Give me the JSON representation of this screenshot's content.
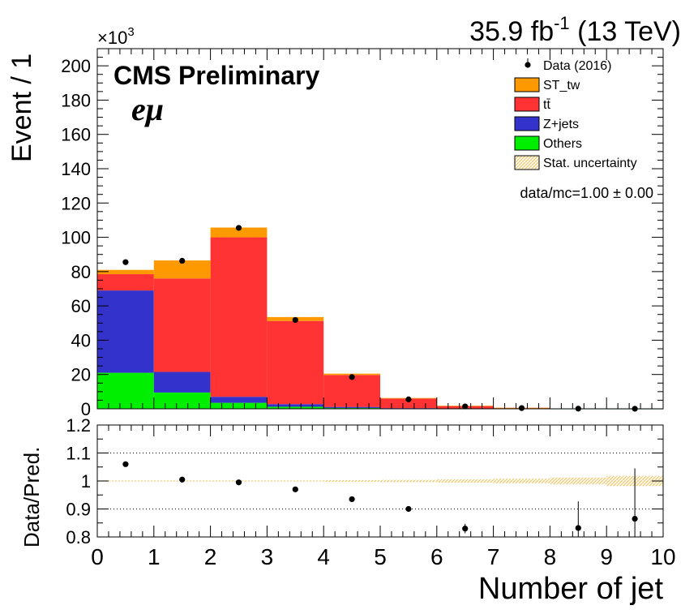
{
  "header": {
    "lumi_value": "35.9 fb",
    "lumi_exp": "-1",
    "energy": " (13 TeV)"
  },
  "labels": {
    "experiment": "CMS Preliminary",
    "channel": "eμ",
    "ratio_text": "data/mc=1.00 ± 0.00",
    "exponent": "×10",
    "exponent_power": "3"
  },
  "chart_data": [
    {
      "type": "bar",
      "stacked": true,
      "xlabel": "Number of jet",
      "ylabel": "Event / 1",
      "xlim": [
        0,
        10
      ],
      "ylim": [
        0,
        210
      ],
      "y_scale_factor": 1000,
      "x_ticks": [
        "0",
        "1",
        "2",
        "3",
        "4",
        "5",
        "6",
        "7",
        "8",
        "9",
        "10"
      ],
      "y_ticks": [
        "0",
        "20",
        "40",
        "60",
        "80",
        "100",
        "120",
        "140",
        "160",
        "180",
        "200"
      ],
      "bin_edges": [
        0,
        1,
        2,
        3,
        4,
        5,
        6,
        7,
        8,
        9,
        10
      ],
      "series": [
        {
          "name": "Others",
          "color": "#00ee00",
          "values": [
            21,
            9.5,
            3.5,
            1.2,
            0.5,
            0.2,
            0.1,
            0.05,
            0.02,
            0.01
          ]
        },
        {
          "name": "Z+jets",
          "color": "#3333cc",
          "values": [
            48,
            12,
            3.5,
            1.5,
            0.6,
            0.2,
            0.1,
            0.05,
            0.02,
            0.01
          ]
        },
        {
          "name": "tt̄",
          "color": "#ff3333",
          "values": [
            9.5,
            54.5,
            93,
            48.5,
            18.6,
            5.6,
            1.5,
            0.45,
            0.15,
            0.05
          ]
        },
        {
          "name": "ST_tw",
          "color": "#ff9900",
          "values": [
            2.5,
            10.5,
            5.7,
            2.3,
            0.8,
            0.3,
            0.05,
            0.02,
            0.01,
            0.0
          ]
        }
      ],
      "data_points": {
        "name": "Data (2016)",
        "x": [
          0.5,
          1.5,
          2.5,
          3.5,
          4.5,
          5.5,
          6.5,
          7.5,
          8.5,
          9.5
        ],
        "y": [
          85.5,
          86.3,
          105.5,
          51.8,
          18.5,
          5.5,
          1.4,
          0.4,
          0.1,
          0.03
        ]
      },
      "legend": {
        "placement": "top-right",
        "entries": [
          {
            "label": "Data (2016)",
            "kind": "marker",
            "color": "#000000"
          },
          {
            "label": "ST_tw",
            "kind": "box",
            "color": "#ff9900"
          },
          {
            "label": "tt̄",
            "kind": "box",
            "color": "#ff3333"
          },
          {
            "label": "Z+jets",
            "kind": "box",
            "color": "#3333cc"
          },
          {
            "label": "Others",
            "kind": "box",
            "color": "#00ee00"
          },
          {
            "label": "Stat. uncertainty",
            "kind": "hatch",
            "color": "#e8c36a"
          }
        ]
      }
    },
    {
      "type": "scatter",
      "xlabel": "Number of jet",
      "ylabel": "Data/Pred.",
      "xlim": [
        0,
        10
      ],
      "ylim": [
        0.8,
        1.2
      ],
      "x_ticks": [
        "0",
        "1",
        "2",
        "3",
        "4",
        "5",
        "6",
        "7",
        "8",
        "9",
        "10"
      ],
      "y_ticks": [
        "0.8",
        "0.9",
        "1",
        "1.1",
        "1.2"
      ],
      "grid_lines_y": [
        0.9,
        1.0,
        1.1
      ],
      "x": [
        0.5,
        1.5,
        2.5,
        3.5,
        4.5,
        5.5,
        6.5,
        7.5,
        8.5,
        9.5
      ],
      "y": [
        1.06,
        1.005,
        0.995,
        0.97,
        0.935,
        0.9,
        0.83,
        null,
        0.832,
        0.865
      ],
      "yerr": [
        0.003,
        0.003,
        0.003,
        0.004,
        0.006,
        0.01,
        0.017,
        0.0,
        0.095,
        0.18
      ],
      "stat_band_halfwidth": [
        0.002,
        0.002,
        0.002,
        0.002,
        0.003,
        0.004,
        0.006,
        0.008,
        0.012,
        0.018
      ]
    }
  ]
}
